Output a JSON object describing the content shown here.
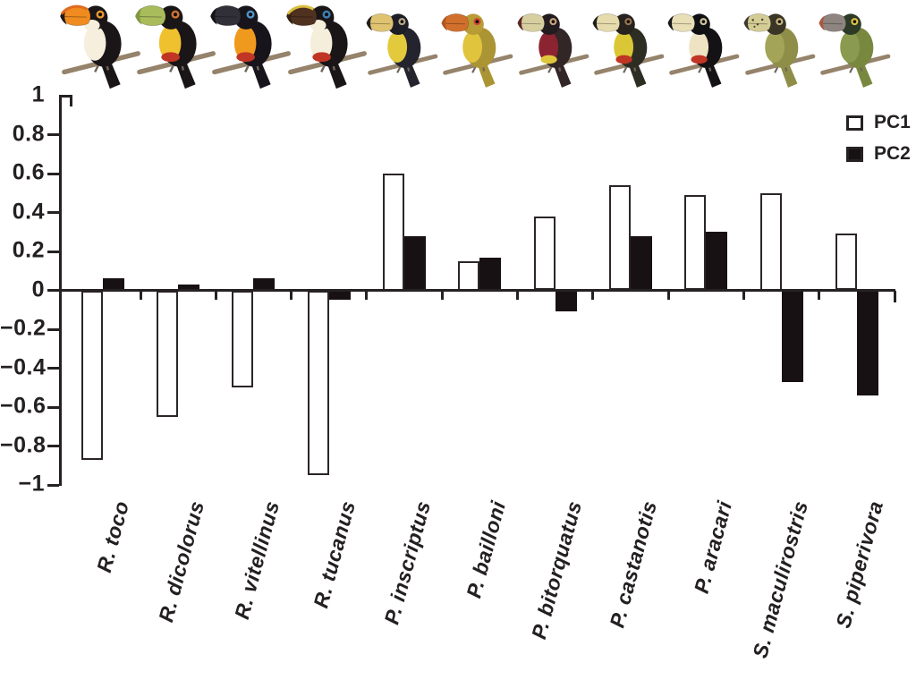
{
  "figure": {
    "background": "#ffffff",
    "description": "PCA loadings bar chart for 11 toucan species with a photo of each bird above its bars"
  },
  "chart_data": {
    "type": "bar",
    "title": "",
    "xlabel": "",
    "ylabel": "",
    "categories": [
      "R. toco",
      "R. dicolorus",
      "R. vitellinus",
      "R. tucanus",
      "P. inscriptus",
      "P. bailloni",
      "P. bitorquatus",
      "P. castanotis",
      "P. aracari",
      "S. maculirostris",
      "S. piperivora"
    ],
    "series": [
      {
        "name": "PC1",
        "fill": "#ffffff",
        "values": [
          -0.87,
          -0.65,
          -0.5,
          -0.95,
          0.6,
          0.15,
          0.38,
          0.54,
          0.49,
          0.5,
          0.29
        ]
      },
      {
        "name": "PC2",
        "fill": "#181113",
        "values": [
          0.06,
          0.03,
          0.06,
          -0.05,
          0.28,
          0.17,
          -0.11,
          0.28,
          0.3,
          -0.47,
          -0.54
        ]
      }
    ],
    "ylim": [
      -1,
      1
    ],
    "yticks": [
      1,
      0.8,
      0.6,
      0.4,
      0.2,
      0,
      -0.2,
      -0.4,
      -0.6,
      -0.8,
      -1
    ],
    "grid": false,
    "legend_position": "top-right",
    "axis_color": "#262123",
    "category_label_style": "italic bold, rotated ~75 degrees"
  },
  "birds": [
    {
      "name": "R. toco",
      "size": "large",
      "body": "#1a1517",
      "breast": "#f6efdd",
      "throat": "#f6efdd",
      "beak": "#ef8b1f",
      "tip": "#231a18",
      "culmen": "#e06a20",
      "eye": "#e89a32",
      "spots": false
    },
    {
      "name": "R. dicolorus",
      "size": "large",
      "body": "#1a1517",
      "breast": "#efc12e",
      "band": "#c03524",
      "beak": "#a9bc5c",
      "tip": "#7d9840",
      "eye": "#cf7430",
      "spots": false
    },
    {
      "name": "R. vitellinus",
      "size": "large",
      "body": "#17141c",
      "breast": "#f0991f",
      "band": "#c03524",
      "beak": "#312f38",
      "tip": "#16141a",
      "eye": "#4f92c4",
      "spots": false
    },
    {
      "name": "R. tucanus",
      "size": "large",
      "body": "#1a1517",
      "breast": "#f5eeda",
      "throat": "#f5eeda",
      "band": "#c03524",
      "beak": "#4f3120",
      "tip": "#33200f",
      "culmen": "#d9bd3e",
      "eye": "#3f7fb2",
      "spots": false
    },
    {
      "name": "P. inscriptus",
      "size": "small",
      "body": "#24242e",
      "breast": "#e3ca3c",
      "head": "#1d1d26",
      "beak": "#dfc370",
      "tip": "#23201b",
      "eye": "#b9a98a",
      "spots": false
    },
    {
      "name": "P. bailloni",
      "size": "small",
      "body": "#ab9434",
      "breast": "#e0c43e",
      "head": "#b89c35",
      "beak": "#d1702d",
      "tip": "#b5541d",
      "eye": "#cd4734",
      "spots": false
    },
    {
      "name": "P. bitorquatus",
      "size": "small",
      "body": "#332627",
      "breast": "#8c2331",
      "band": "#dfc63c",
      "head": "#221b20",
      "beak": "#d8cfa0",
      "tip": "#5d2824",
      "eye": "#c9a27b",
      "spots": false
    },
    {
      "name": "P. castanotis",
      "size": "small",
      "body": "#2e2d24",
      "breast": "#dbc636",
      "band": "#c03524",
      "head": "#27221e",
      "beak": "#e6dbac",
      "tip": "#201e18",
      "eye": "#9a7550",
      "spots": false
    },
    {
      "name": "P. aracari",
      "size": "small",
      "body": "#141215",
      "breast": "#eee4c4",
      "band": "#c03524",
      "head": "#111013",
      "beak": "#e8dfb7",
      "tip": "#19171b",
      "eye": "#cfc49c",
      "spots": false
    },
    {
      "name": "S. maculirostris",
      "size": "small",
      "body": "#8e8e48",
      "breast": "#a4a458",
      "head": "#3a3525",
      "beak": "#d5cb95",
      "tip": "#3d3b2d",
      "eye": "#c7b87e",
      "spots": true
    },
    {
      "name": "S. piperivora",
      "size": "small",
      "body": "#78883f",
      "breast": "#8a9a4e",
      "head": "#2c3a26",
      "beak": "#8e8480",
      "tip": "#b0543c",
      "eye": "#dfc045",
      "spots": false
    }
  ]
}
